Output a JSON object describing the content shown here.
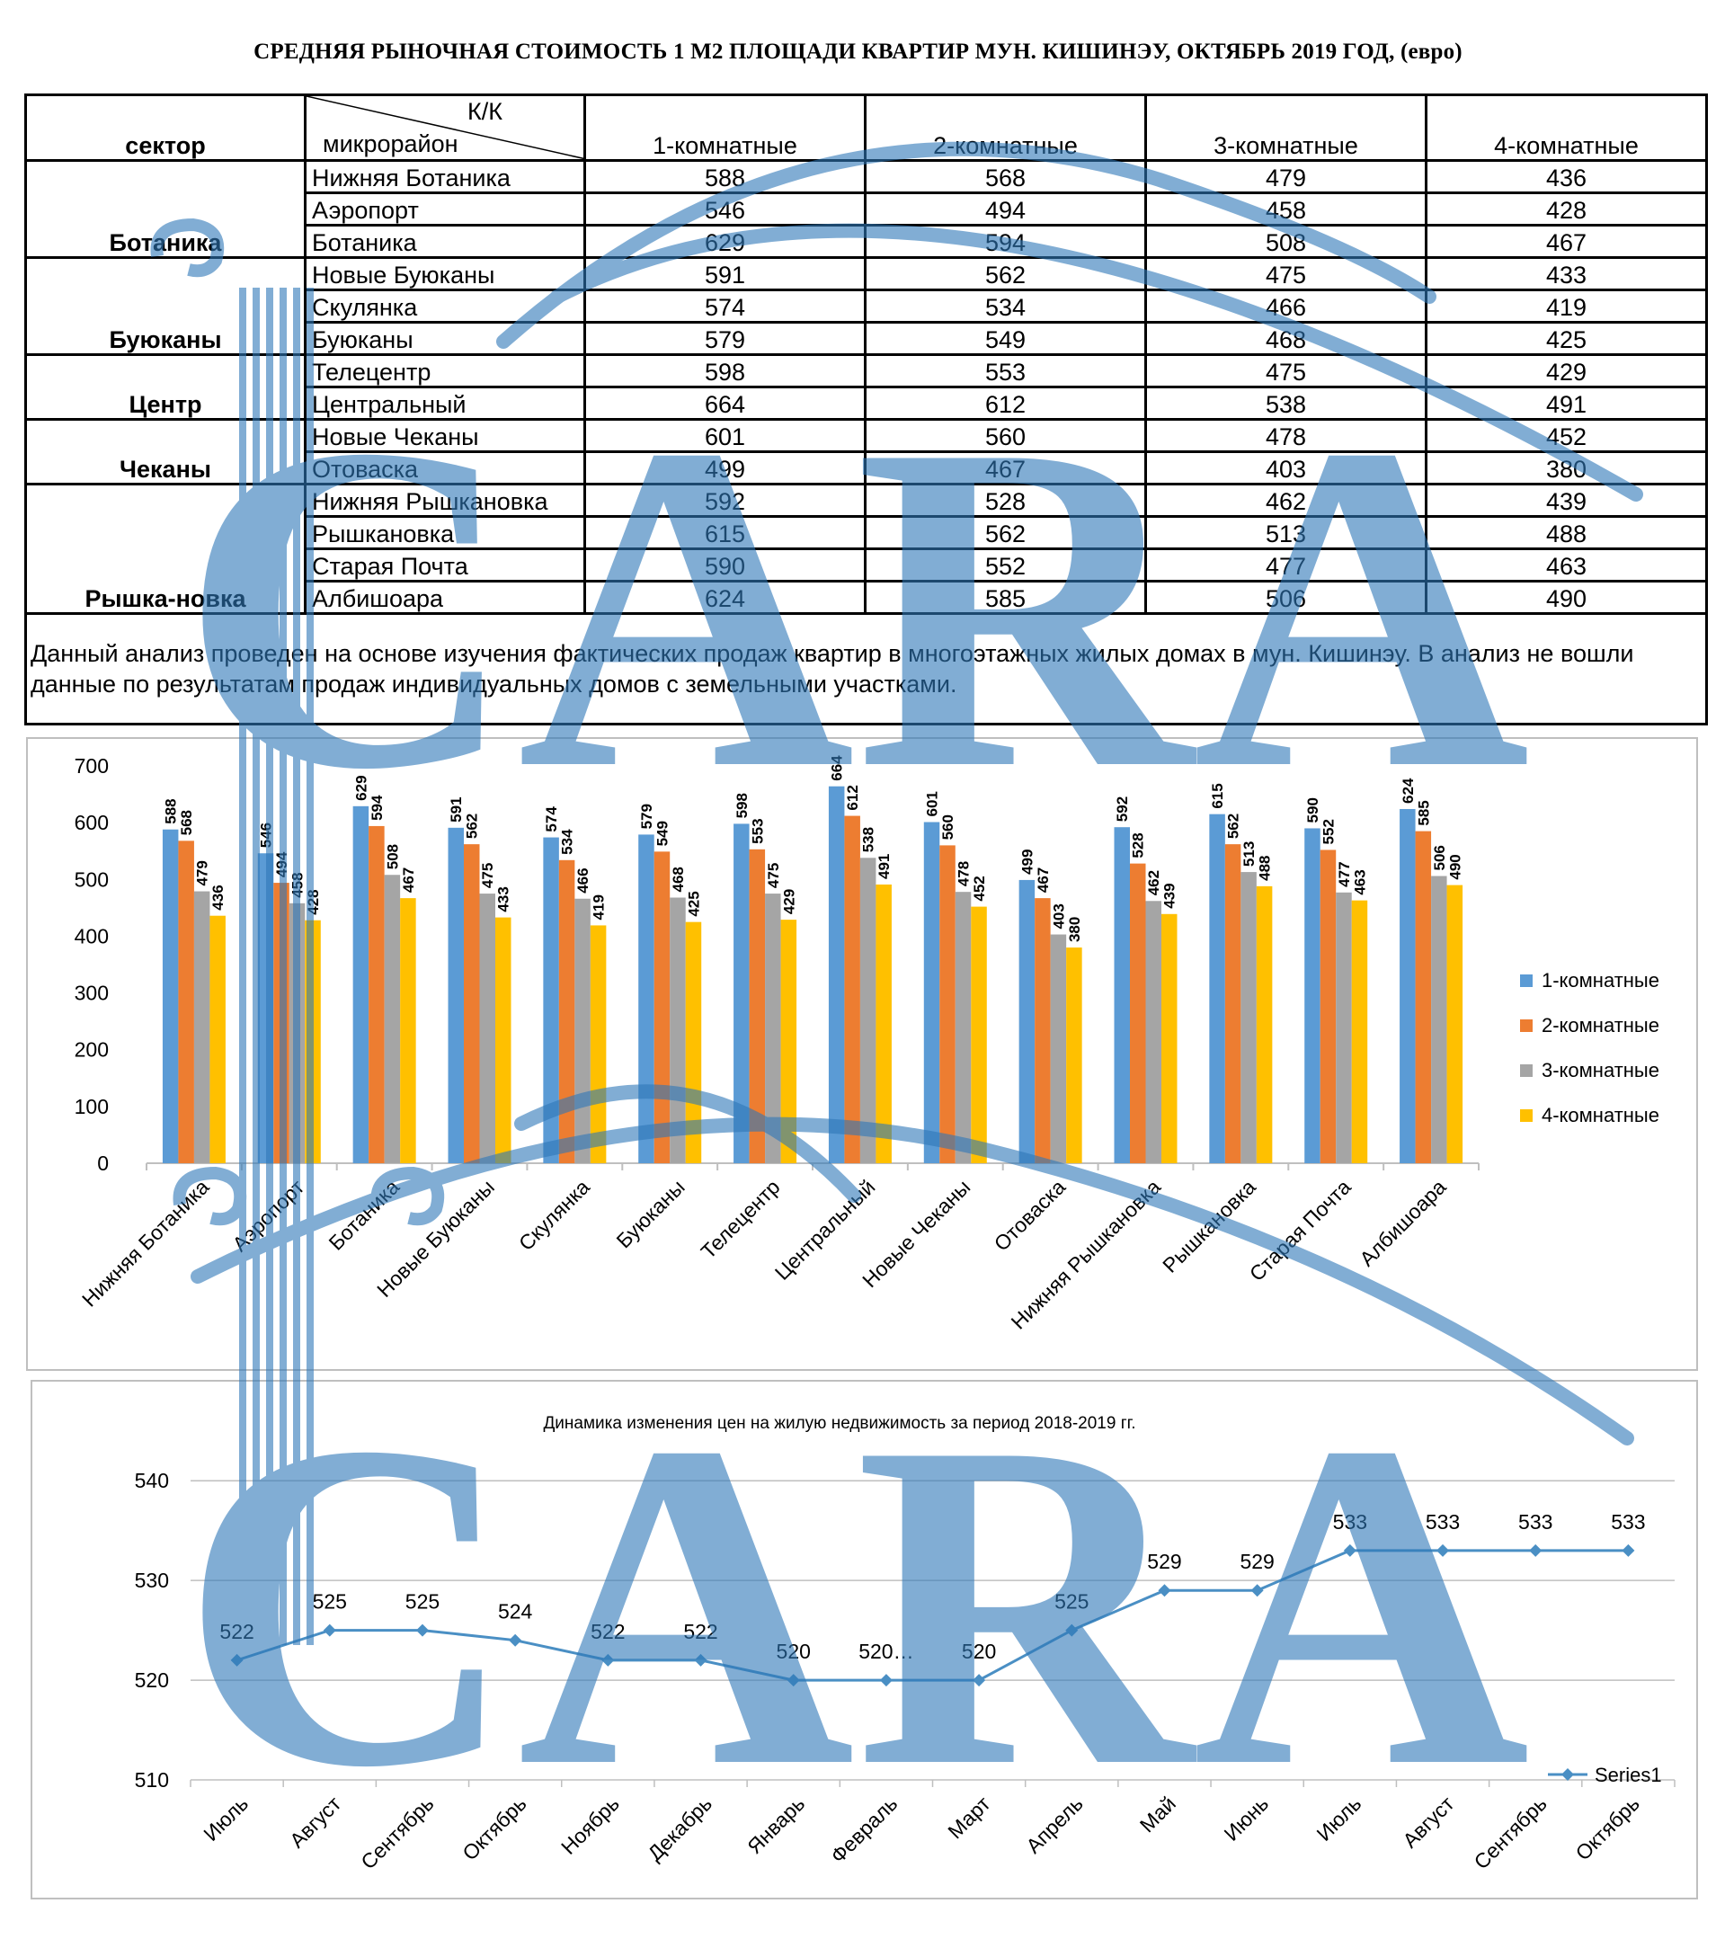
{
  "title": "СРЕДНЯЯ  РЫНОЧНАЯ  СТОИМОСТЬ  1 М2  ПЛОЩАДИ  КВАРТИР МУН.  КИШИНЭУ, ОКТЯБРЬ 2019 ГОД, (евро)",
  "table": {
    "header": {
      "sector": "сектор",
      "diag_top": "К/К",
      "diag_bottom": "микрорайон",
      "cols": [
        "1-комнатные",
        "2-комнатные",
        "3-комнатные",
        "4-комнатные"
      ]
    },
    "sectors": [
      {
        "name": "Ботаника",
        "rows": [
          {
            "name": "Нижняя Ботаника",
            "v": [
              588,
              568,
              479,
              436
            ]
          },
          {
            "name": "Аэропорт",
            "v": [
              546,
              494,
              458,
              428
            ]
          },
          {
            "name": "Ботаника",
            "v": [
              629,
              594,
              508,
              467
            ]
          }
        ]
      },
      {
        "name": "Буюканы",
        "rows": [
          {
            "name": "Новые Буюканы",
            "v": [
              591,
              562,
              475,
              433
            ]
          },
          {
            "name": "Скулянка",
            "v": [
              574,
              534,
              466,
              419
            ]
          },
          {
            "name": "Буюканы",
            "v": [
              579,
              549,
              468,
              425
            ]
          }
        ]
      },
      {
        "name": "Центр",
        "rows": [
          {
            "name": "Телецентр",
            "v": [
              598,
              553,
              475,
              429
            ]
          },
          {
            "name": "Центральный",
            "v": [
              664,
              612,
              538,
              491
            ]
          }
        ]
      },
      {
        "name": "Чеканы",
        "rows": [
          {
            "name": "Новые Чеканы",
            "v": [
              601,
              560,
              478,
              452
            ]
          },
          {
            "name": "Отоваска",
            "v": [
              499,
              467,
              403,
              380
            ]
          }
        ]
      },
      {
        "name": "Рышка-новка",
        "rows": [
          {
            "name": "Нижняя Рышкановка",
            "v": [
              592,
              528,
              462,
              439
            ]
          },
          {
            "name": "Рышкановка",
            "v": [
              615,
              562,
              513,
              488
            ]
          },
          {
            "name": "Старая Почта",
            "v": [
              590,
              552,
              477,
              463
            ]
          },
          {
            "name": "Албишоара",
            "v": [
              624,
              585,
              506,
              490
            ]
          }
        ]
      }
    ],
    "note": "Данный анализ проведен на основе изучения фактических продаж квартир в многоэтажных жилых домах в мун. Кишинэу. В анализ не вошли данные по результатам  продаж индивидуальных домов с земельными участками."
  },
  "chart_data": [
    {
      "type": "bar",
      "title": "",
      "categories": [
        "Нижняя Ботаника",
        "Аэропорт",
        "Ботаника",
        "Новые Буюканы",
        "Скулянка",
        "Буюканы",
        "Телецентр",
        "Центральный",
        "Новые Чеканы",
        "Отоваска",
        "Нижняя Рышкановка",
        "Рышкановка",
        "Старая Почта",
        "Албишоара"
      ],
      "series": [
        {
          "name": "1-комнатные",
          "color": "#5b9bd5",
          "values": [
            588,
            546,
            629,
            591,
            574,
            579,
            598,
            664,
            601,
            499,
            592,
            615,
            590,
            624
          ]
        },
        {
          "name": "2-комнатные",
          "color": "#ed7d31",
          "values": [
            568,
            494,
            594,
            562,
            534,
            549,
            553,
            612,
            560,
            467,
            528,
            562,
            552,
            585
          ]
        },
        {
          "name": "3-комнатные",
          "color": "#a5a5a5",
          "values": [
            479,
            458,
            508,
            475,
            466,
            468,
            475,
            538,
            478,
            403,
            462,
            513,
            477,
            506
          ]
        },
        {
          "name": "4-комнатные",
          "color": "#ffc000",
          "values": [
            436,
            428,
            467,
            433,
            419,
            425,
            429,
            491,
            452,
            380,
            439,
            488,
            463,
            490
          ]
        }
      ],
      "yticks": [
        0,
        100,
        200,
        300,
        400,
        500,
        600,
        700
      ],
      "ylim": [
        0,
        700
      ],
      "legend": "right",
      "grid": false
    },
    {
      "type": "line",
      "title": "Динамика изменения цен на жилую недвижимость за период 2018-2019 гг.",
      "categories": [
        "Июль",
        "Август",
        "Сентябрь",
        "Октябрь",
        "Ноябрь",
        "Декабрь",
        "Январь",
        "Февраль",
        "Март",
        "Апрель",
        "Май",
        "Июнь",
        "Июль",
        "Август",
        "Сентябрь",
        "Октябрь"
      ],
      "series": [
        {
          "name": "Series1",
          "color": "#4a8fc4",
          "values": [
            522,
            525,
            525,
            524,
            522,
            522,
            520,
            520,
            520,
            525,
            529,
            529,
            533,
            533,
            533,
            533
          ]
        }
      ],
      "data_labels": [
        "522",
        "525",
        "525",
        "524",
        "522",
        "522",
        "520",
        "520…",
        "520",
        "525",
        "529",
        "529",
        "533",
        "533",
        "533",
        "533"
      ],
      "yticks": [
        510,
        520,
        530,
        540
      ],
      "ylim": [
        510,
        542
      ],
      "legend": "bottom-right",
      "grid": true
    }
  ]
}
